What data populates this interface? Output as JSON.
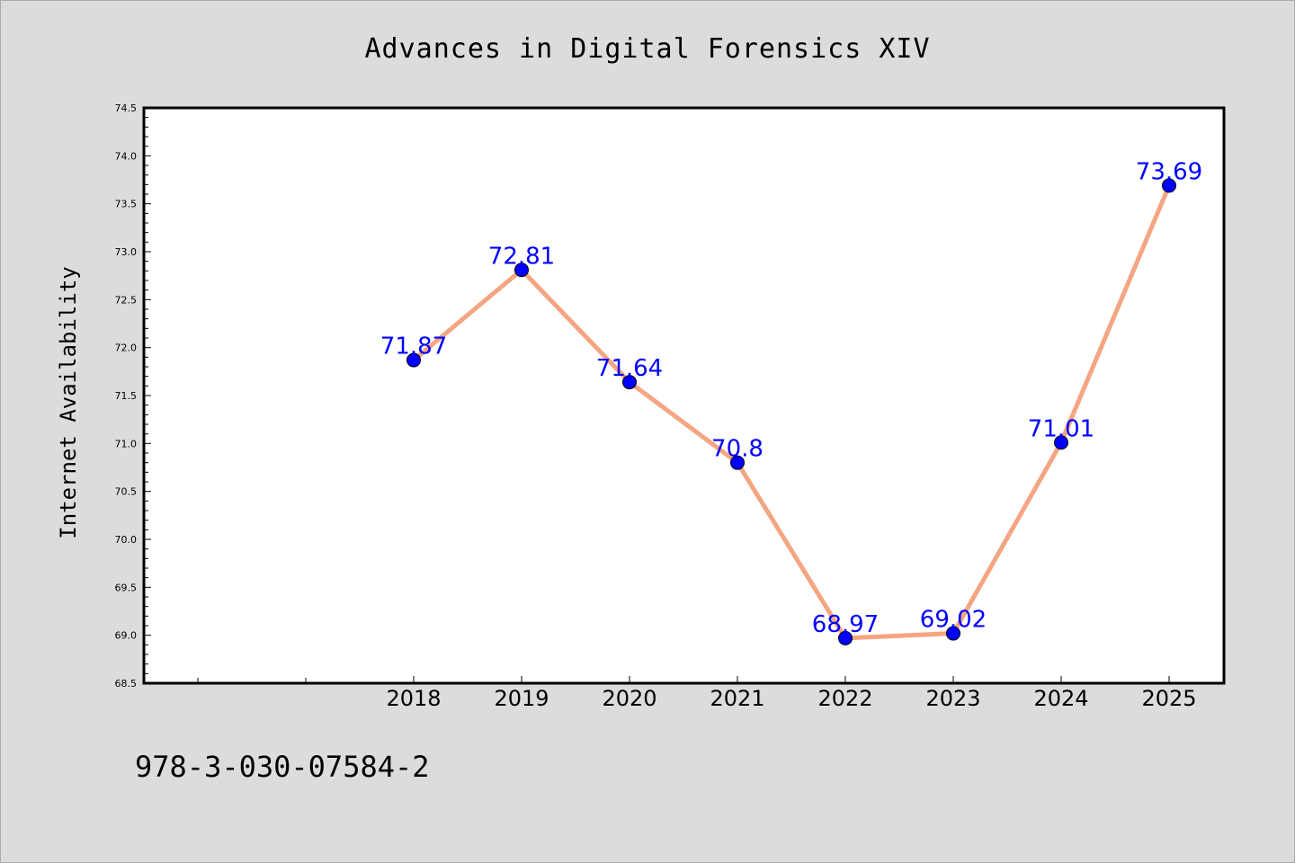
{
  "chart_data": {
    "type": "line",
    "title": "Advances in Digital Forensics XIV",
    "ylabel": "Internet Availability",
    "xlabel": "",
    "x": [
      "2018",
      "2019",
      "2020",
      "2021",
      "2022",
      "2023",
      "2024",
      "2025"
    ],
    "series": [
      {
        "values": [
          71.87,
          72.81,
          71.64,
          70.8,
          68.97,
          69.02,
          71.01,
          73.69
        ],
        "labels": [
          "71.87",
          "72.81",
          "71.64",
          "70.8",
          "68.97",
          "69.02",
          "71.01",
          "73.69"
        ],
        "line_color": "#f4a582",
        "marker_color": "#0000ff"
      }
    ],
    "ylim": [
      68.5,
      74.5
    ],
    "yticks": [
      "68.5",
      "69.0",
      "69.5",
      "70.0",
      "70.5",
      "71.0",
      "71.5",
      "72.0",
      "72.5",
      "73.0",
      "73.5",
      "74.0",
      "74.5"
    ],
    "grid": false,
    "legend": "none",
    "label_color": "#0000ff"
  },
  "footer": {
    "isbn": "978-3-030-07584-2"
  }
}
